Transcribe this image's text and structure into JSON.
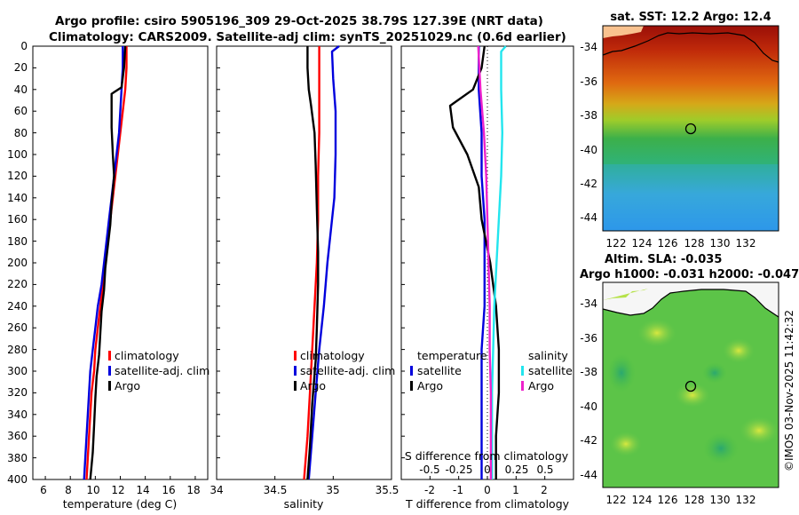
{
  "header": {
    "line1": "Argo profile: csiro 5905196_309 29-Oct-2025 38.79S 127.39E (NRT data)",
    "line2": "Climatology: CARS2009. Satellite-adj clim: synTS_20251029.nc (0.6d earlier)"
  },
  "depth_ticks": [
    "0",
    "20",
    "40",
    "60",
    "80",
    "100",
    "120",
    "140",
    "160",
    "180",
    "200",
    "220",
    "240",
    "260",
    "280",
    "300",
    "320",
    "340",
    "360",
    "380",
    "400"
  ],
  "colors": {
    "climatology": "#ff0000",
    "satellite": "#0000dd",
    "argo": "#000000",
    "salinity_sat": "#22e5ee",
    "salinity_argo": "#ee22cc"
  },
  "chart_data": [
    {
      "id": "temperature",
      "type": "line",
      "xlabel": "temperature (deg C)",
      "ylabel": "",
      "xlim": [
        5,
        19
      ],
      "ylim": [
        400,
        0
      ],
      "x_ticks": [
        "6",
        "8",
        "10",
        "12",
        "14",
        "16",
        "18"
      ],
      "legend": [
        "climatology",
        "satellite-adj. clim",
        "Argo"
      ],
      "legend_position": "center-right",
      "series": [
        {
          "name": "climatology",
          "color": "#ff0000",
          "points": [
            [
              12.5,
              0
            ],
            [
              12.5,
              20
            ],
            [
              12.4,
              40
            ],
            [
              12.2,
              60
            ],
            [
              12.0,
              80
            ],
            [
              11.8,
              100
            ],
            [
              11.6,
              120
            ],
            [
              11.4,
              140
            ],
            [
              11.2,
              160
            ],
            [
              11.0,
              180
            ],
            [
              10.8,
              200
            ],
            [
              10.6,
              220
            ],
            [
              10.4,
              240
            ],
            [
              10.2,
              260
            ],
            [
              10.0,
              280
            ],
            [
              9.9,
              300
            ],
            [
              9.7,
              320
            ],
            [
              9.6,
              340
            ],
            [
              9.5,
              360
            ],
            [
              9.4,
              380
            ],
            [
              9.3,
              400
            ]
          ]
        },
        {
          "name": "satellite-adj. clim",
          "color": "#0000dd",
          "points": [
            [
              12.2,
              0
            ],
            [
              12.2,
              20
            ],
            [
              12.1,
              40
            ],
            [
              12.0,
              60
            ],
            [
              11.9,
              80
            ],
            [
              11.7,
              100
            ],
            [
              11.5,
              120
            ],
            [
              11.3,
              140
            ],
            [
              11.1,
              160
            ],
            [
              10.9,
              180
            ],
            [
              10.7,
              200
            ],
            [
              10.5,
              220
            ],
            [
              10.2,
              240
            ],
            [
              10.0,
              260
            ],
            [
              9.8,
              280
            ],
            [
              9.6,
              300
            ],
            [
              9.5,
              320
            ],
            [
              9.4,
              340
            ],
            [
              9.3,
              360
            ],
            [
              9.2,
              380
            ],
            [
              9.1,
              400
            ]
          ]
        },
        {
          "name": "Argo",
          "color": "#000000",
          "points": [
            [
              12.4,
              0
            ],
            [
              12.3,
              20
            ],
            [
              12.1,
              38
            ],
            [
              11.3,
              44
            ],
            [
              11.3,
              60
            ],
            [
              11.3,
              75
            ],
            [
              11.4,
              100
            ],
            [
              11.5,
              120
            ],
            [
              11.3,
              145
            ],
            [
              11.2,
              165
            ],
            [
              11.0,
              185
            ],
            [
              10.8,
              205
            ],
            [
              10.7,
              225
            ],
            [
              10.5,
              245
            ],
            [
              10.4,
              265
            ],
            [
              10.3,
              285
            ],
            [
              10.1,
              305
            ],
            [
              10.0,
              325
            ],
            [
              9.9,
              350
            ],
            [
              9.8,
              375
            ],
            [
              9.6,
              400
            ]
          ]
        }
      ]
    },
    {
      "id": "salinity",
      "type": "line",
      "xlabel": "salinity",
      "ylabel": "",
      "xlim": [
        34,
        35.5
      ],
      "ylim": [
        400,
        0
      ],
      "x_ticks": [
        "34",
        "34.5",
        "35",
        "35.5"
      ],
      "legend": [
        "climatology",
        "satellite-adj. clim",
        "Argo"
      ],
      "legend_position": "center-right",
      "series": [
        {
          "name": "climatology",
          "color": "#ff0000",
          "points": [
            [
              34.88,
              0
            ],
            [
              34.88,
              40
            ],
            [
              34.88,
              80
            ],
            [
              34.87,
              120
            ],
            [
              34.87,
              160
            ],
            [
              34.86,
              200
            ],
            [
              34.84,
              240
            ],
            [
              34.82,
              280
            ],
            [
              34.8,
              320
            ],
            [
              34.78,
              360
            ],
            [
              34.75,
              400
            ]
          ]
        },
        {
          "name": "satellite-adj. clim",
          "color": "#0000dd",
          "points": [
            [
              35.05,
              0
            ],
            [
              34.99,
              5
            ],
            [
              35.0,
              30
            ],
            [
              35.02,
              60
            ],
            [
              35.02,
              100
            ],
            [
              35.01,
              140
            ],
            [
              34.98,
              170
            ],
            [
              34.95,
              200
            ],
            [
              34.92,
              240
            ],
            [
              34.88,
              280
            ],
            [
              34.85,
              320
            ],
            [
              34.82,
              360
            ],
            [
              34.79,
              400
            ]
          ]
        },
        {
          "name": "Argo",
          "color": "#000000",
          "points": [
            [
              34.78,
              0
            ],
            [
              34.78,
              20
            ],
            [
              34.79,
              40
            ],
            [
              34.81,
              55
            ],
            [
              34.84,
              80
            ],
            [
              34.85,
              110
            ],
            [
              34.86,
              150
            ],
            [
              34.87,
              190
            ],
            [
              34.87,
              220
            ],
            [
              34.86,
              260
            ],
            [
              34.85,
              290
            ],
            [
              34.82,
              330
            ],
            [
              34.8,
              370
            ],
            [
              34.78,
              400
            ]
          ]
        }
      ]
    },
    {
      "id": "differences",
      "type": "line",
      "xlabel": "T difference from climatology",
      "ylabel": "",
      "xlim": [
        -3,
        3
      ],
      "ylim": [
        400,
        0
      ],
      "x_ticks": [
        "-2",
        "-1",
        "0",
        "1",
        "2"
      ],
      "secondary_xlabel": "S difference from climatology",
      "secondary_x_ticks": [
        "-0.5",
        "-0.25",
        "0",
        "0.25",
        "0.5"
      ],
      "legend": [
        "temperature",
        "satellite",
        "Argo",
        "salinity",
        "satellite",
        "Argo"
      ],
      "legend_position": "center",
      "series": [
        {
          "name": "temperature satellite",
          "color": "#0000dd",
          "points": [
            [
              -0.3,
              0
            ],
            [
              -0.3,
              40
            ],
            [
              -0.2,
              80
            ],
            [
              -0.2,
              120
            ],
            [
              -0.1,
              160
            ],
            [
              -0.1,
              200
            ],
            [
              -0.1,
              240
            ],
            [
              -0.2,
              280
            ],
            [
              -0.2,
              320
            ],
            [
              -0.2,
              360
            ],
            [
              -0.2,
              400
            ]
          ]
        },
        {
          "name": "temperature Argo",
          "color": "#000000",
          "points": [
            [
              -0.1,
              0
            ],
            [
              -0.2,
              20
            ],
            [
              -0.5,
              40
            ],
            [
              -1.3,
              55
            ],
            [
              -1.2,
              75
            ],
            [
              -0.7,
              100
            ],
            [
              -0.3,
              130
            ],
            [
              -0.2,
              160
            ],
            [
              0.1,
              200
            ],
            [
              0.3,
              240
            ],
            [
              0.4,
              280
            ],
            [
              0.4,
              320
            ],
            [
              0.3,
              360
            ],
            [
              0.3,
              400
            ]
          ]
        },
        {
          "name": "salinity satellite",
          "color": "#22e5ee",
          "points": [
            [
              0.16,
              0
            ],
            [
              0.12,
              5
            ],
            [
              0.12,
              40
            ],
            [
              0.13,
              80
            ],
            [
              0.12,
              120
            ],
            [
              0.1,
              160
            ],
            [
              0.08,
              200
            ],
            [
              0.06,
              240
            ],
            [
              0.05,
              280
            ],
            [
              0.04,
              320
            ],
            [
              0.04,
              360
            ],
            [
              0.04,
              400
            ]
          ]
        },
        {
          "name": "salinity Argo",
          "color": "#ee22cc",
          "points": [
            [
              -0.08,
              0
            ],
            [
              -0.06,
              40
            ],
            [
              -0.03,
              80
            ],
            [
              -0.01,
              120
            ],
            [
              0.0,
              160
            ],
            [
              0.01,
              200
            ],
            [
              0.02,
              240
            ],
            [
              0.02,
              280
            ],
            [
              0.03,
              320
            ],
            [
              0.03,
              360
            ],
            [
              0.03,
              400
            ]
          ]
        }
      ]
    },
    {
      "id": "sst_map",
      "type": "heatmap",
      "title": "sat. SST: 12.2 Argo: 12.4",
      "x_ticks": [
        "122",
        "124",
        "126",
        "128",
        "130",
        "132"
      ],
      "y_ticks": [
        "-34",
        "-36",
        "-38",
        "-40",
        "-42",
        "-44"
      ],
      "xlim": [
        120.5,
        134
      ],
      "ylim": [
        -45,
        -33
      ],
      "argo_position": [
        127.39,
        -38.79
      ]
    },
    {
      "id": "sla_map",
      "type": "heatmap",
      "title": "Altim. SLA: -0.035",
      "subtitle": "Argo h1000: -0.031 h2000: -0.047",
      "x_ticks": [
        "122",
        "124",
        "126",
        "128",
        "130",
        "132"
      ],
      "y_ticks": [
        "-34",
        "-36",
        "-38",
        "-40",
        "-42",
        "-44"
      ],
      "xlim": [
        120.5,
        134
      ],
      "ylim": [
        -45,
        -33
      ],
      "argo_position": [
        127.39,
        -38.79
      ]
    }
  ],
  "footer": {
    "credit": "©IMOS 03-Nov-2025 11:42:32"
  }
}
